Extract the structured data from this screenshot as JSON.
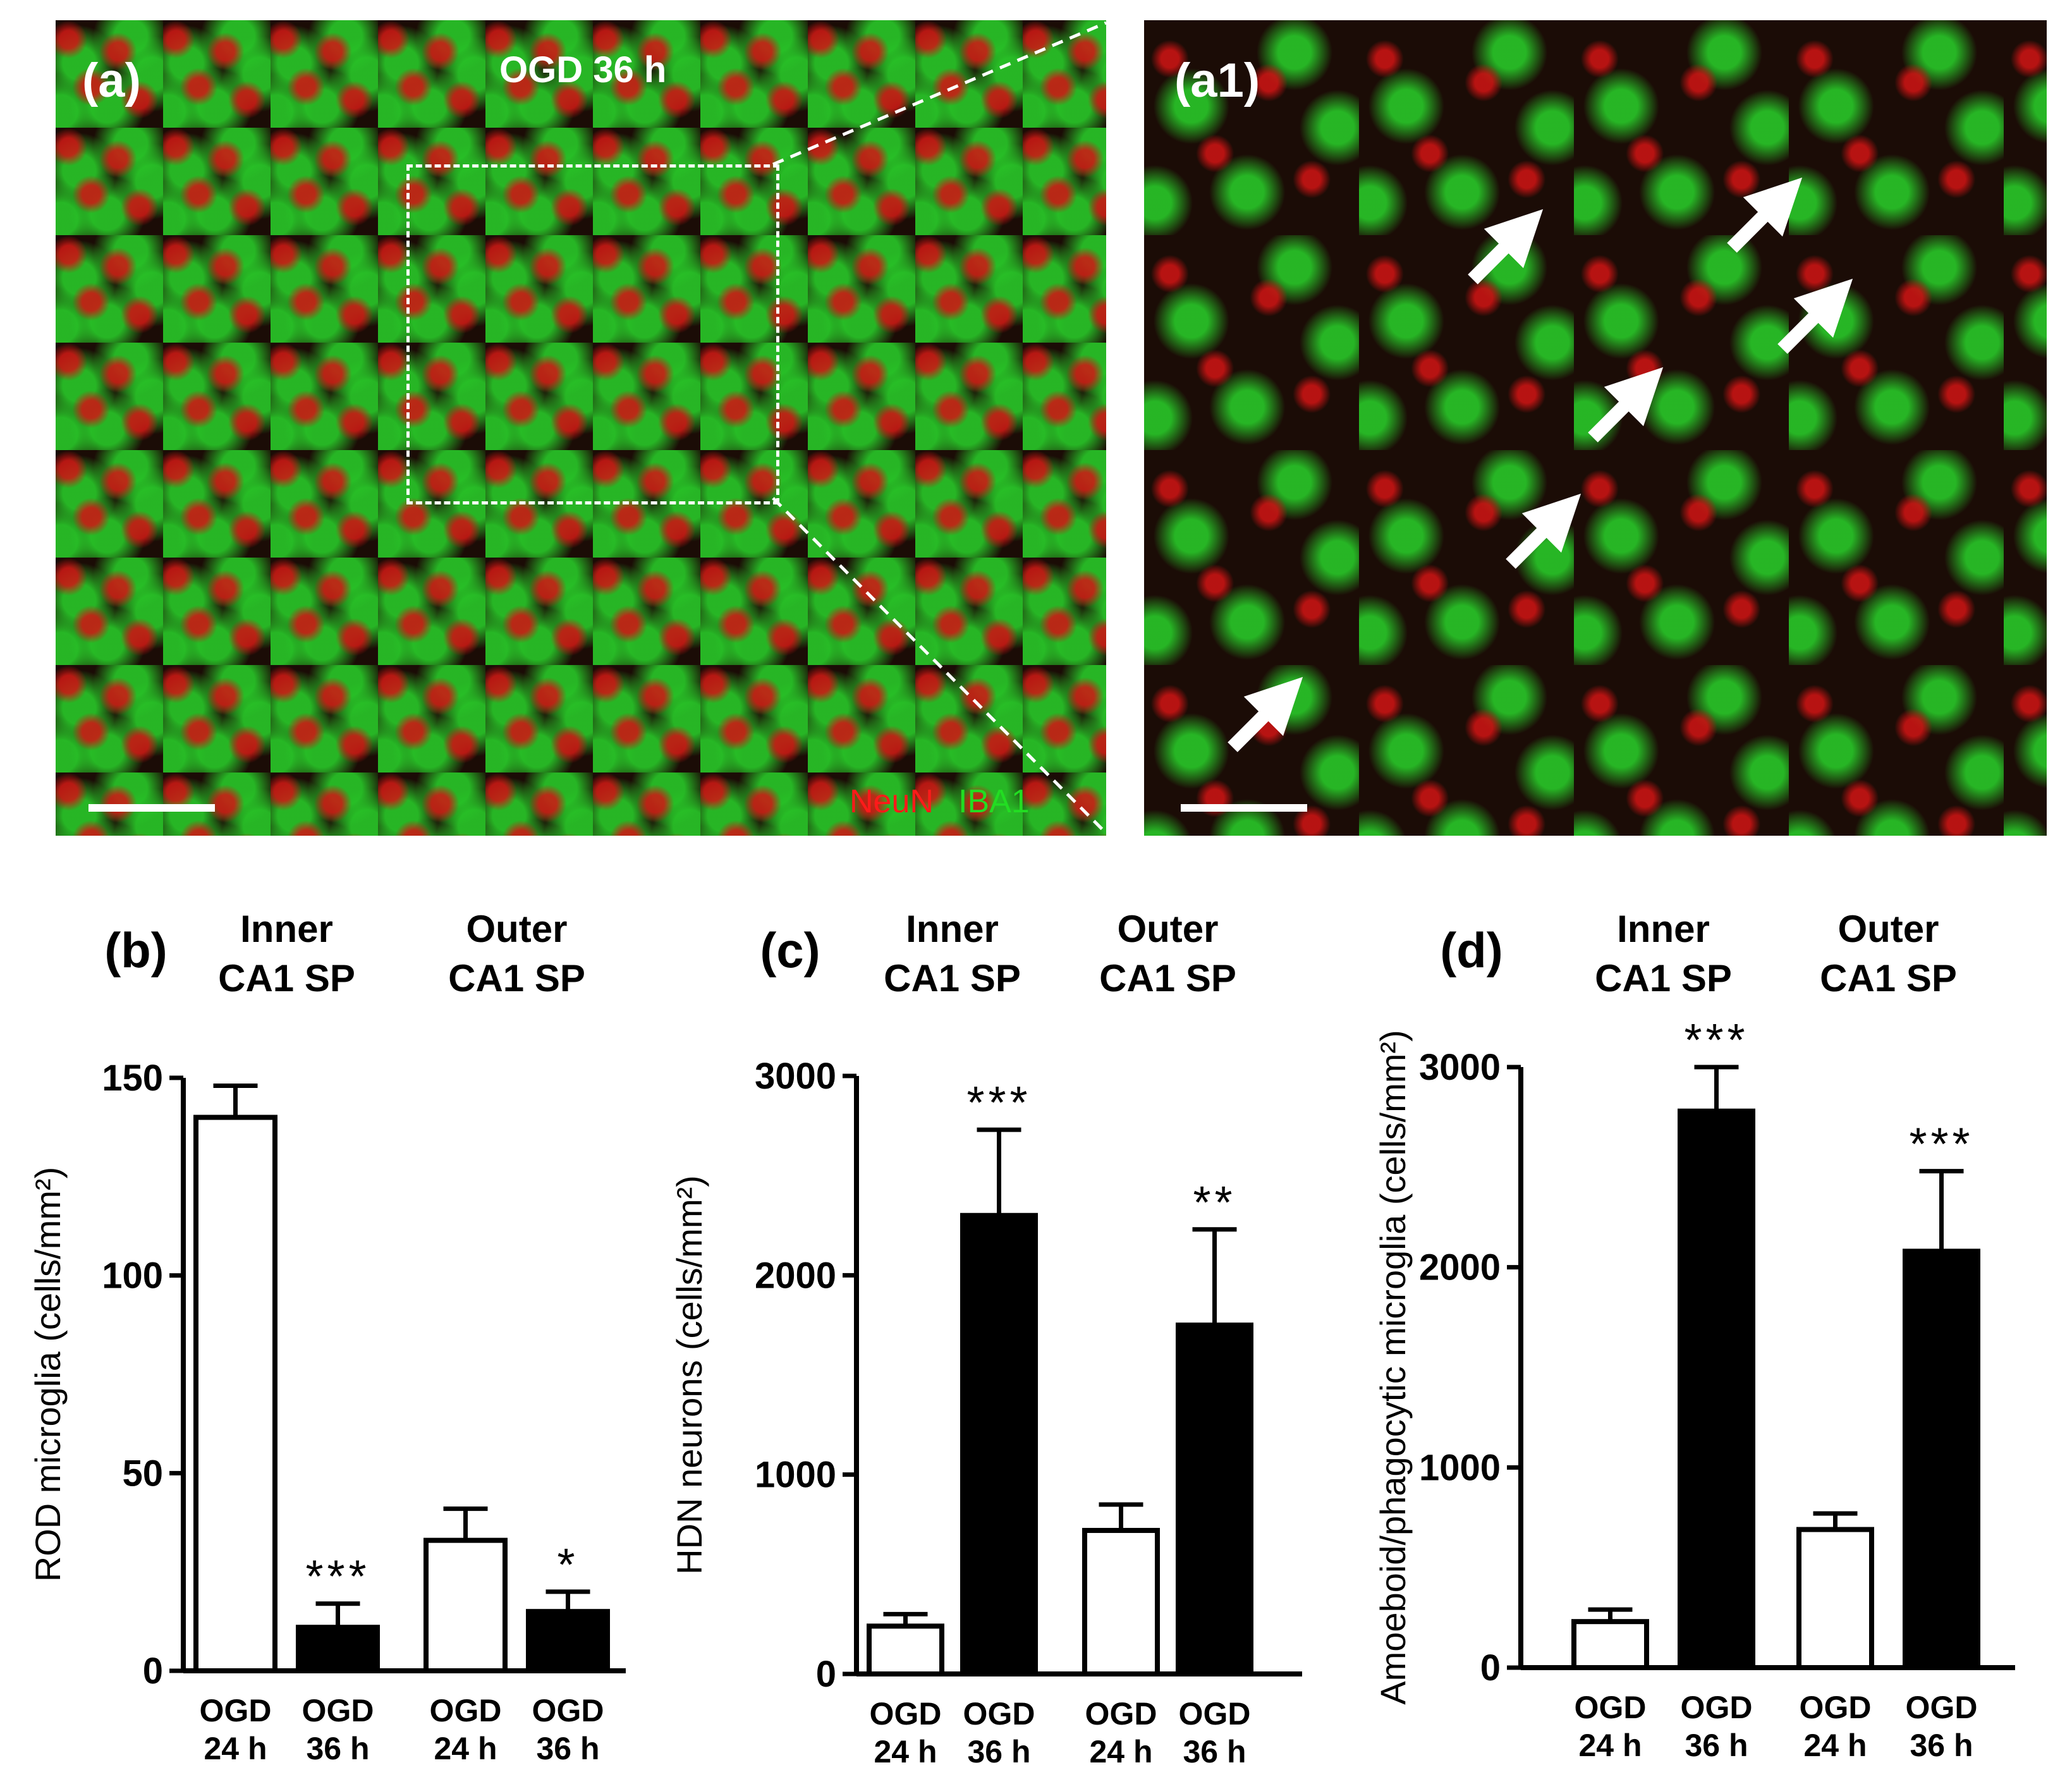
{
  "images": {
    "panel_a": {
      "label": "(a)",
      "title": "OGD 36 h",
      "legend": {
        "neun": "NeuN",
        "iba1": "IBA1",
        "neun_color": "#ff1a1a",
        "iba1_color": "#22dd22"
      }
    },
    "panel_a1": {
      "label": "(a1)"
    }
  },
  "chart_data": [
    {
      "type": "bar",
      "panel": "(b)",
      "groups": [
        "Inner\nCA1 SP",
        "Outer\nCA1 SP"
      ],
      "categories": [
        "OGD\n24 h",
        "OGD\n36 h",
        "OGD\n24 h",
        "OGD\n36 h"
      ],
      "values": [
        140,
        11,
        33,
        15
      ],
      "errors": [
        8,
        6,
        8,
        5
      ],
      "fills": [
        "#ffffff",
        "#000000",
        "#ffffff",
        "#000000"
      ],
      "significance": [
        "",
        "***",
        "",
        "*"
      ],
      "ylabel": "ROD microglia  (cells/mm²)",
      "ylim": [
        0,
        150
      ],
      "yticks": [
        "0",
        "50",
        "100",
        "150"
      ],
      "ytick_values": [
        0,
        50,
        100,
        150
      ]
    },
    {
      "type": "bar",
      "panel": "(c)",
      "groups": [
        "Inner\nCA1 SP",
        "Outer\nCA1 SP"
      ],
      "categories": [
        "OGD\n24 h",
        "OGD\n36 h",
        "OGD\n24 h",
        "OGD\n36 h"
      ],
      "values": [
        240,
        2300,
        720,
        1750
      ],
      "errors": [
        60,
        430,
        130,
        480
      ],
      "fills": [
        "#ffffff",
        "#000000",
        "#ffffff",
        "#000000"
      ],
      "significance": [
        "",
        "***",
        "",
        "**"
      ],
      "ylabel": "HDN neurons  (cells/mm²)",
      "ylim": [
        0,
        3000
      ],
      "yticks": [
        "0",
        "1000",
        "2000",
        "3000"
      ],
      "ytick_values": [
        0,
        1000,
        2000,
        3000
      ]
    },
    {
      "type": "bar",
      "panel": "(d)",
      "groups": [
        "Inner\nCA1 SP",
        "Outer\nCA1 SP"
      ],
      "categories": [
        "OGD\n24 h",
        "OGD\n36 h",
        "OGD\n24 h",
        "OGD\n36 h"
      ],
      "values": [
        230,
        2780,
        690,
        2080
      ],
      "errors": [
        60,
        220,
        80,
        400
      ],
      "fills": [
        "#ffffff",
        "#000000",
        "#ffffff",
        "#000000"
      ],
      "significance": [
        "",
        "***",
        "",
        "***"
      ],
      "ylabel": "Amoeboid/phagocytic microglia (cells/mm²)",
      "ylim": [
        0,
        3000
      ],
      "yticks": [
        "0",
        "1000",
        "2000",
        "3000"
      ],
      "ytick_values": [
        0,
        1000,
        2000,
        3000
      ]
    }
  ]
}
